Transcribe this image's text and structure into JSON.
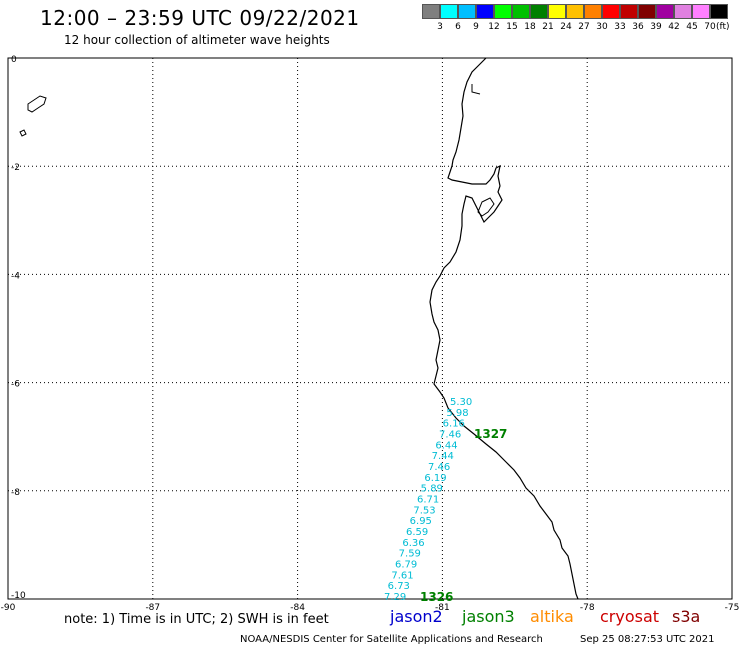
{
  "header": {
    "title": "12:00 – 23:59 UTC 09/22/2021",
    "subtitle": "12 hour collection of altimeter wave heights"
  },
  "color_scale": {
    "colors": [
      "#7f7f7f",
      "#00ffff",
      "#00bfff",
      "#0000ff",
      "#00ff00",
      "#00c000",
      "#008000",
      "#ffff00",
      "#ffc000",
      "#ff8000",
      "#ff0000",
      "#c00000",
      "#800000",
      "#a000a0",
      "#e080e0",
      "#ff80ff",
      "#000000"
    ],
    "labels": [
      "3",
      "6",
      "9",
      "12",
      "15",
      "18",
      "21",
      "24",
      "27",
      "30",
      "33",
      "36",
      "39",
      "42",
      "45",
      "70"
    ],
    "unit": "(ft)"
  },
  "map": {
    "lon_ticks": [
      "-90",
      "-87",
      "-84",
      "-81",
      "-78",
      "-75"
    ],
    "lat_ticks": [
      "0",
      "-2",
      "-4",
      "-6",
      "-8",
      "-10"
    ],
    "track_values": [
      "5.30",
      "5.98",
      "6.16",
      "7.46",
      "6.44",
      "7.44",
      "7.46",
      "6.19",
      "5.89",
      "6.71",
      "7.53",
      "6.95",
      "6.59",
      "6.36",
      "7.59",
      "6.79",
      "7.61",
      "6.73",
      "7.29"
    ],
    "track_color": "#00bcd4",
    "track_ids": [
      "1327",
      "1326"
    ],
    "track_id_color": "#008000",
    "coast_color": "#000000"
  },
  "footer": {
    "note": "note: 1) Time is in UTC; 2) SWH is in feet",
    "satellites": [
      {
        "name": "jason2",
        "color": "#0000cc"
      },
      {
        "name": "jason3",
        "color": "#008000"
      },
      {
        "name": "altika",
        "color": "#ff8c00"
      },
      {
        "name": "cryosat",
        "color": "#cc0000"
      },
      {
        "name": "s3a",
        "color": "#800000"
      }
    ],
    "credit": "NOAA/NESDIS Center for Satellite Applications and Research",
    "timestamp": "Sep 25 08:27:53 UTC 2021"
  }
}
